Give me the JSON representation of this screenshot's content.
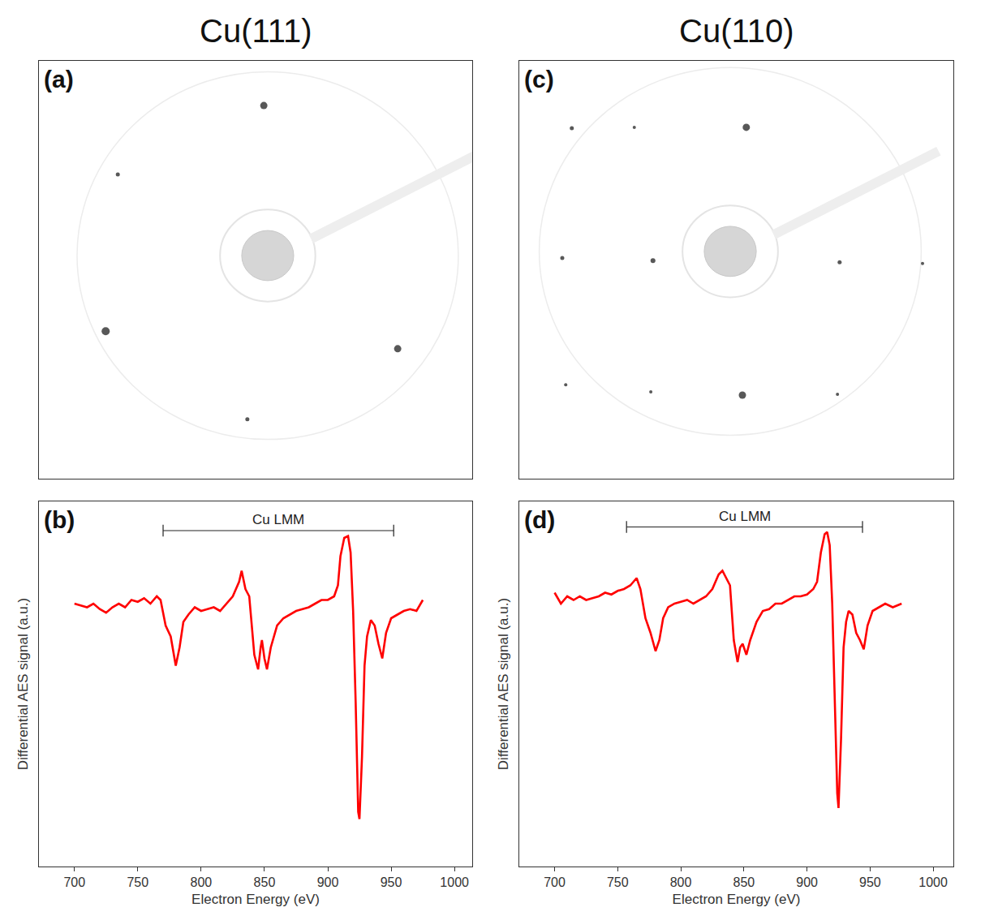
{
  "column_titles": [
    "Cu(111)",
    "Cu(110)"
  ],
  "chart_data": [
    {
      "panel": "(a)",
      "type": "scatter",
      "tick_labels": false,
      "color": "#111111",
      "xlim": [
        0,
        100
      ],
      "ylim": [
        0,
        100
      ],
      "x": [
        51.9,
        18.2,
        15.4,
        82.8,
        48.1
      ],
      "y": [
        89.3,
        72.8,
        35.3,
        31.1,
        14.2
      ],
      "sizes": [
        9,
        5,
        10,
        9,
        5
      ]
    },
    {
      "panel": "(b)",
      "type": "line",
      "tick_labels": "x",
      "color": "#ff0000",
      "x_label": "Electron Energy (eV)",
      "y_label": "Differential AES signal (a.u.)",
      "xlim": [
        672,
        1014
      ],
      "ylim": [
        0,
        100
      ],
      "xticks": [
        700,
        750,
        800,
        850,
        900,
        950,
        1000
      ],
      "annotations": [
        {
          "text": "Cu LMM",
          "x_range": [
            770,
            952
          ],
          "y": 92
        }
      ],
      "x": [
        700,
        705,
        710,
        715,
        720,
        725,
        730,
        735,
        740,
        745,
        750,
        755,
        760,
        765,
        768,
        772,
        776,
        780,
        783,
        786,
        790,
        795,
        800,
        805,
        810,
        815,
        820,
        825,
        830,
        832,
        835,
        838,
        842,
        845,
        847,
        848,
        850,
        852,
        855,
        860,
        865,
        870,
        875,
        880,
        885,
        890,
        895,
        900,
        905,
        908,
        910,
        913,
        916,
        918,
        920,
        922,
        924,
        925,
        927,
        929,
        931,
        934,
        937,
        940,
        943,
        946,
        950,
        955,
        960,
        965,
        970,
        975
      ],
      "values": [
        72,
        71.5,
        71,
        72,
        70.5,
        69.5,
        71,
        72,
        71,
        73,
        72.5,
        73.5,
        72,
        74,
        73,
        66,
        63,
        55,
        60,
        67,
        69,
        71,
        70,
        70.5,
        71,
        70,
        72,
        74,
        78,
        81,
        76,
        74,
        58,
        54,
        60,
        62,
        57,
        54,
        60,
        66,
        68,
        69,
        70,
        70.5,
        71,
        72,
        73,
        73,
        74,
        77,
        85,
        90,
        90.5,
        86,
        70,
        45,
        15,
        13,
        30,
        55,
        63,
        67.5,
        66,
        61,
        57,
        64,
        68,
        69,
        70,
        70.5,
        70,
        73
      ]
    },
    {
      "panel": "(c)",
      "type": "scatter",
      "tick_labels": false,
      "color": "#111111",
      "xlim": [
        0,
        100
      ],
      "ylim": [
        0,
        100
      ],
      "x": [
        12.1,
        26.5,
        52.3,
        9.9,
        30.8,
        73.8,
        92.9,
        10.7,
        30.3,
        51.4,
        73.3
      ],
      "y": [
        83.9,
        84.1,
        84.1,
        52.8,
        52.2,
        51.8,
        51.5,
        22.5,
        20.8,
        20.0,
        20.2
      ],
      "sizes": [
        5,
        4,
        9,
        5,
        6,
        5,
        4,
        4,
        4,
        9,
        4
      ]
    },
    {
      "panel": "(d)",
      "type": "line",
      "tick_labels": "x",
      "color": "#ff0000",
      "x_label": "Electron Energy (eV)",
      "y_label": "Differential AES signal (a.u.)",
      "xlim": [
        672,
        1016
      ],
      "ylim": [
        0,
        100
      ],
      "xticks": [
        700,
        750,
        800,
        850,
        900,
        950,
        1000
      ],
      "annotations": [
        {
          "text": "Cu LMM",
          "x_range": [
            757,
            944
          ],
          "y": 93
        }
      ],
      "x": [
        700,
        705,
        710,
        715,
        720,
        725,
        730,
        735,
        740,
        745,
        750,
        755,
        760,
        765,
        768,
        772,
        776,
        780,
        783,
        786,
        790,
        795,
        800,
        805,
        810,
        815,
        820,
        825,
        830,
        833,
        836,
        839,
        842,
        845,
        847,
        849,
        852,
        855,
        860,
        865,
        870,
        875,
        880,
        885,
        890,
        895,
        900,
        905,
        908,
        911,
        914,
        916,
        918,
        920,
        922,
        924,
        925,
        927,
        929,
        931,
        933,
        936,
        939,
        942,
        945,
        948,
        952,
        957,
        962,
        968,
        975
      ],
      "values": [
        75,
        72,
        74,
        73,
        74,
        73,
        73.5,
        74,
        75,
        74.5,
        75.5,
        76,
        77,
        79,
        76,
        68,
        64,
        59,
        62,
        68,
        71,
        72,
        72.5,
        73,
        72,
        73,
        74,
        76,
        80,
        81,
        79,
        77,
        62,
        56,
        60,
        61,
        58,
        62,
        67,
        70,
        70.5,
        72,
        72,
        73,
        74,
        74,
        74.5,
        76,
        78,
        86,
        91,
        91.6,
        88,
        72,
        48,
        20,
        16,
        35,
        60,
        67,
        70,
        69,
        64,
        62,
        59.5,
        66,
        70,
        71,
        72,
        71,
        72
      ]
    }
  ]
}
